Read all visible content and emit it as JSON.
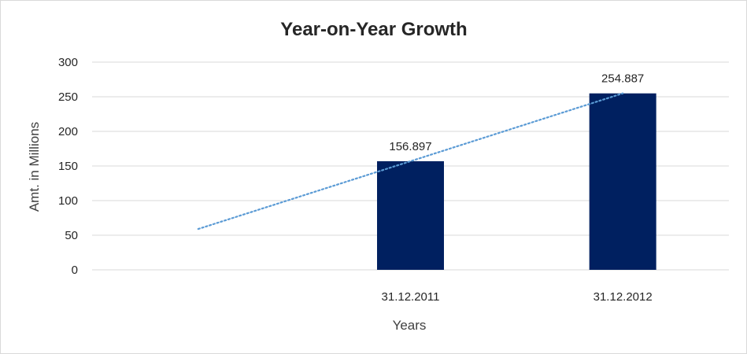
{
  "chart_data": {
    "type": "bar",
    "title": "Year-on-Year Growth",
    "xlabel": "Years",
    "ylabel": "Amt. in Millions",
    "categories": [
      "",
      "31.12.2011",
      "31.12.2012"
    ],
    "series": [
      {
        "values": [
          null,
          156.897,
          254.887
        ],
        "data_labels": [
          "",
          "156.897",
          "254.887"
        ],
        "color": "#002060"
      }
    ],
    "trendline": {
      "type": "linear",
      "style": "dotted",
      "color": "#5B9BD5",
      "values": [
        59,
        156.9,
        254.9
      ]
    },
    "ylim": [
      0,
      300
    ],
    "yticks": [
      "0",
      "50",
      "100",
      "150",
      "200",
      "250",
      "300"
    ],
    "grid": true,
    "legend": "none"
  }
}
